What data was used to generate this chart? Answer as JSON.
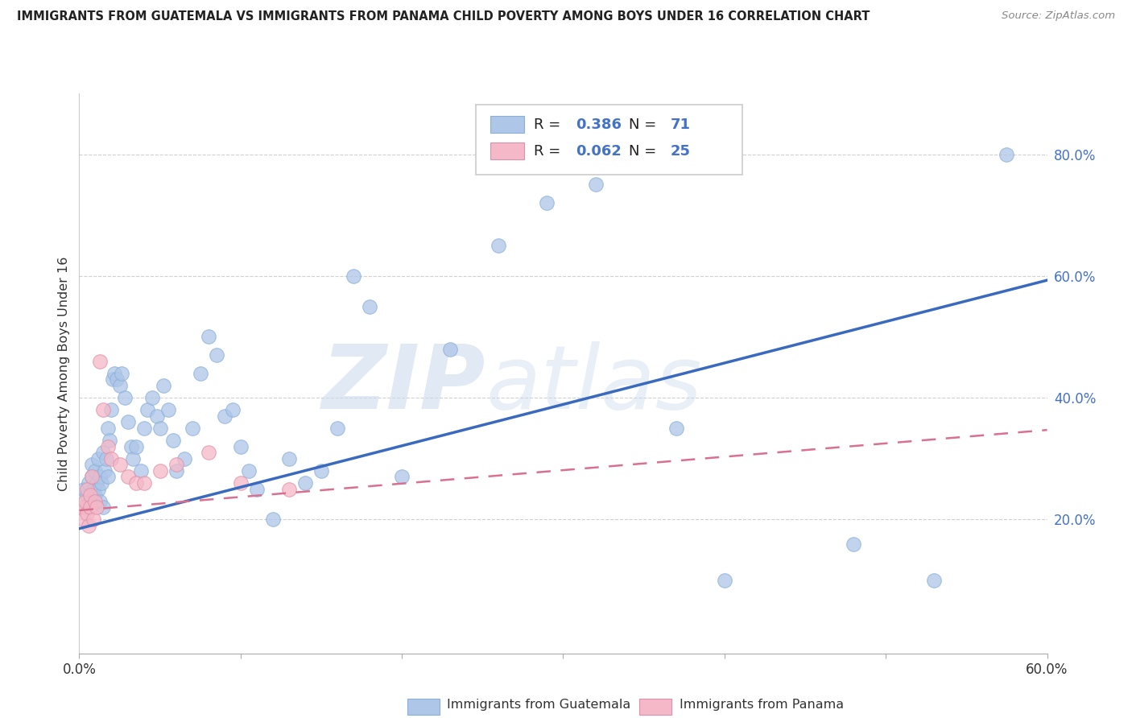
{
  "title": "IMMIGRANTS FROM GUATEMALA VS IMMIGRANTS FROM PANAMA CHILD POVERTY AMONG BOYS UNDER 16 CORRELATION CHART",
  "source": "Source: ZipAtlas.com",
  "ylabel": "Child Poverty Among Boys Under 16",
  "watermark_part1": "ZIP",
  "watermark_part2": "atlas",
  "legend1_label": "Immigrants from Guatemala",
  "legend2_label": "Immigrants from Panama",
  "R_guatemala": 0.386,
  "N_guatemala": 71,
  "R_panama": 0.062,
  "N_panama": 25,
  "xlim": [
    0.0,
    0.6
  ],
  "ylim": [
    -0.02,
    0.9
  ],
  "color_guatemala": "#aec6e8",
  "color_panama": "#f4b8c8",
  "line_color_guatemala": "#3a6abf",
  "line_color_panama": "#d97090",
  "guatemala_x": [
    0.003,
    0.004,
    0.005,
    0.006,
    0.007,
    0.008,
    0.008,
    0.009,
    0.01,
    0.01,
    0.011,
    0.012,
    0.012,
    0.013,
    0.013,
    0.014,
    0.015,
    0.015,
    0.016,
    0.017,
    0.018,
    0.018,
    0.019,
    0.02,
    0.021,
    0.022,
    0.023,
    0.025,
    0.026,
    0.028,
    0.03,
    0.032,
    0.033,
    0.035,
    0.038,
    0.04,
    0.042,
    0.045,
    0.048,
    0.05,
    0.052,
    0.055,
    0.058,
    0.06,
    0.065,
    0.07,
    0.075,
    0.08,
    0.085,
    0.09,
    0.095,
    0.1,
    0.105,
    0.11,
    0.12,
    0.13,
    0.14,
    0.15,
    0.16,
    0.17,
    0.18,
    0.2,
    0.23,
    0.26,
    0.29,
    0.32,
    0.37,
    0.4,
    0.48,
    0.53,
    0.575
  ],
  "guatemala_y": [
    0.25,
    0.22,
    0.24,
    0.26,
    0.23,
    0.27,
    0.29,
    0.25,
    0.24,
    0.28,
    0.26,
    0.25,
    0.3,
    0.27,
    0.23,
    0.26,
    0.31,
    0.22,
    0.28,
    0.3,
    0.35,
    0.27,
    0.33,
    0.38,
    0.43,
    0.44,
    0.43,
    0.42,
    0.44,
    0.4,
    0.36,
    0.32,
    0.3,
    0.32,
    0.28,
    0.35,
    0.38,
    0.4,
    0.37,
    0.35,
    0.42,
    0.38,
    0.33,
    0.28,
    0.3,
    0.35,
    0.44,
    0.5,
    0.47,
    0.37,
    0.38,
    0.32,
    0.28,
    0.25,
    0.2,
    0.3,
    0.26,
    0.28,
    0.35,
    0.6,
    0.55,
    0.27,
    0.48,
    0.65,
    0.72,
    0.75,
    0.35,
    0.1,
    0.16,
    0.1,
    0.8
  ],
  "panama_x": [
    0.002,
    0.003,
    0.004,
    0.005,
    0.005,
    0.006,
    0.007,
    0.007,
    0.008,
    0.009,
    0.01,
    0.011,
    0.013,
    0.015,
    0.018,
    0.02,
    0.025,
    0.03,
    0.035,
    0.04,
    0.05,
    0.06,
    0.08,
    0.1,
    0.13
  ],
  "panama_y": [
    0.22,
    0.2,
    0.23,
    0.21,
    0.25,
    0.19,
    0.24,
    0.22,
    0.27,
    0.2,
    0.23,
    0.22,
    0.46,
    0.38,
    0.32,
    0.3,
    0.29,
    0.27,
    0.26,
    0.26,
    0.28,
    0.29,
    0.31,
    0.26,
    0.25
  ],
  "regression_guatemala": {
    "m": 0.68,
    "b": 0.185
  },
  "regression_panama": {
    "m": 0.22,
    "b": 0.215
  }
}
